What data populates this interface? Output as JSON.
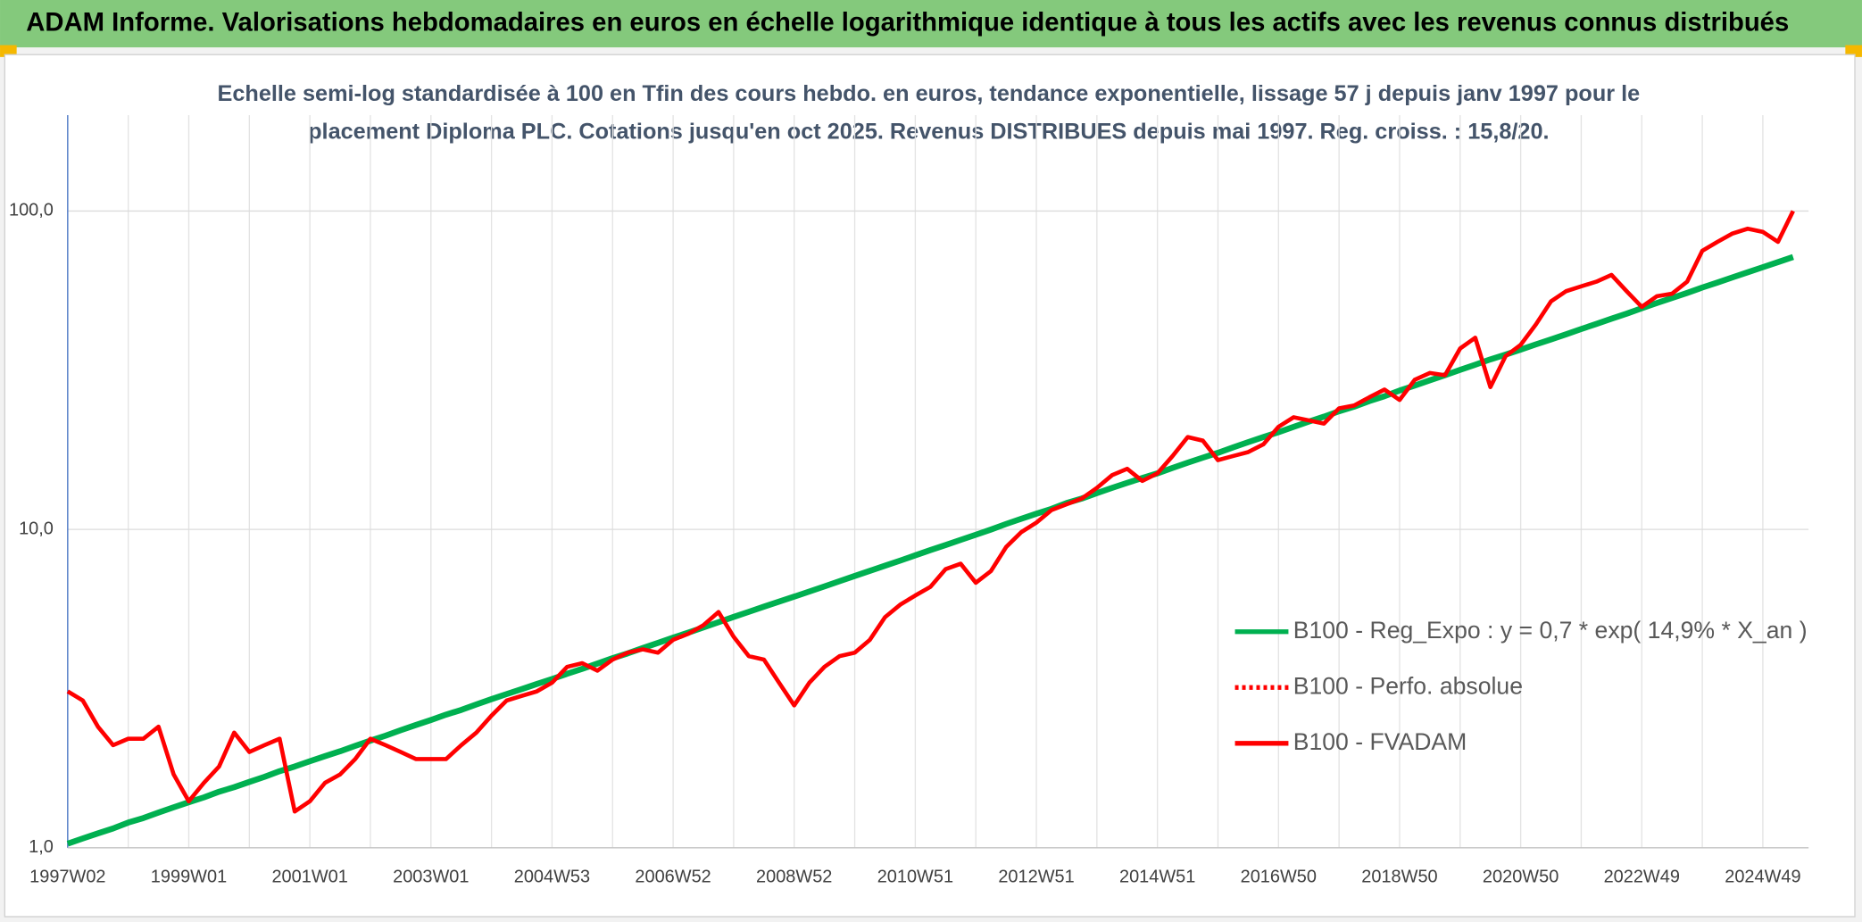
{
  "chart_data": {
    "type": "line",
    "title": "ADAM Informe. Valorisations hebdomadaires en euros en échelle logarithmique identique à tous les actifs avec les revenus connus distribués",
    "subtitle": [
      "Echelle semi-log standardisée à 100 en Tfin des cours hebdo. en euros, tendance exponentielle, lissage 57 j depuis janv 1997 pour le",
      "placement Diploma PLC. Cotations jusqu'en oct 2025. Revenus DISTRIBUES depuis mai 1997. Reg. croiss. : 15,8/20."
    ],
    "categories": [
      "1997W02",
      null,
      null,
      null,
      null,
      null,
      null,
      null,
      "1999W01",
      null,
      null,
      null,
      null,
      null,
      null,
      null,
      "2001W01",
      null,
      null,
      null,
      null,
      null,
      null,
      null,
      "2003W01",
      null,
      null,
      null,
      null,
      null,
      null,
      null,
      "2004W53",
      null,
      null,
      null,
      null,
      null,
      null,
      null,
      "2006W52",
      null,
      null,
      null,
      null,
      null,
      null,
      null,
      "2008W52",
      null,
      null,
      null,
      null,
      null,
      null,
      null,
      "2010W51",
      null,
      null,
      null,
      null,
      null,
      null,
      null,
      "2012W51",
      null,
      null,
      null,
      null,
      null,
      null,
      null,
      "2014W51",
      null,
      null,
      null,
      null,
      null,
      null,
      null,
      "2016W50",
      null,
      null,
      null,
      null,
      null,
      null,
      null,
      "2018W50",
      null,
      null,
      null,
      null,
      null,
      null,
      null,
      "2020W50",
      null,
      null,
      null,
      null,
      null,
      null,
      null,
      "2022W49",
      null,
      null,
      null,
      null,
      null,
      null,
      null,
      "2024W49",
      null,
      null
    ],
    "log_scale": true,
    "ylim": [
      1,
      200
    ],
    "yticks": [
      {
        "value": 1,
        "label": "1,0"
      },
      {
        "value": 10,
        "label": "10,0"
      },
      {
        "value": 100,
        "label": "100,0"
      }
    ],
    "grid": true,
    "legend": "right",
    "series": [
      {
        "name": "B100 - Reg_Expo : y = 0,7 * exp( 14,9% *  X_an )",
        "color": "#00b050",
        "style": "solid",
        "values": [
          1.03,
          1.07,
          1.11,
          1.15,
          1.2,
          1.24,
          1.29,
          1.34,
          1.39,
          1.44,
          1.5,
          1.55,
          1.61,
          1.67,
          1.74,
          1.8,
          1.87,
          1.94,
          2.01,
          2.09,
          2.17,
          2.25,
          2.34,
          2.43,
          2.52,
          2.62,
          2.71,
          2.82,
          2.93,
          3.04,
          3.15,
          3.27,
          3.39,
          3.52,
          3.65,
          3.79,
          3.94,
          4.08,
          4.24,
          4.4,
          4.57,
          4.74,
          4.92,
          5.11,
          5.31,
          5.51,
          5.72,
          5.93,
          6.15,
          6.38,
          6.62,
          6.88,
          7.14,
          7.41,
          7.69,
          7.98,
          8.29,
          8.61,
          8.93,
          9.27,
          9.62,
          9.99,
          10.4,
          10.8,
          11.2,
          11.6,
          12.1,
          12.5,
          13.0,
          13.5,
          14.0,
          14.5,
          15.0,
          15.6,
          16.2,
          16.8,
          17.4,
          18.1,
          18.8,
          19.5,
          20.2,
          21.0,
          21.8,
          22.6,
          23.5,
          24.3,
          25.3,
          26.2,
          27.3,
          28.3,
          29.4,
          30.5,
          31.7,
          32.9,
          34.2,
          35.4,
          36.7,
          38.1,
          39.5,
          41.0,
          42.6,
          44.2,
          45.9,
          47.6,
          49.5,
          51.4,
          53.3,
          55.3,
          57.5,
          59.6,
          61.9,
          64.2,
          66.6,
          69.1,
          71.7
        ]
      },
      {
        "name": "B100 - Perfo. absolue",
        "color": "#ff0000",
        "style": "dotted"
      },
      {
        "name": "B100 - FVADAM",
        "color": "#ff0000",
        "style": "solid",
        "values": [
          3.1,
          2.9,
          2.4,
          2.1,
          2.2,
          2.2,
          2.4,
          1.7,
          1.4,
          1.6,
          1.8,
          2.3,
          2.0,
          2.1,
          2.2,
          1.3,
          1.4,
          1.6,
          1.7,
          1.9,
          2.2,
          2.1,
          2.0,
          1.9,
          1.9,
          1.9,
          2.1,
          2.3,
          2.6,
          2.9,
          3.0,
          3.1,
          3.3,
          3.7,
          3.8,
          3.6,
          3.9,
          4.1,
          4.2,
          4.1,
          4.5,
          4.7,
          5.0,
          5.5,
          4.6,
          4.0,
          3.9,
          3.3,
          2.8,
          3.3,
          3.7,
          4.0,
          4.1,
          4.5,
          5.3,
          5.8,
          6.2,
          6.6,
          7.5,
          7.8,
          6.8,
          7.4,
          8.8,
          9.8,
          10.5,
          11.5,
          12.0,
          12.5,
          13.5,
          14.8,
          15.5,
          14.2,
          15.0,
          17.0,
          19.5,
          19.0,
          16.5,
          17.0,
          17.5,
          18.5,
          21.0,
          22.5,
          22.0,
          21.5,
          24.0,
          24.5,
          26.0,
          27.5,
          25.5,
          29.5,
          31.0,
          30.5,
          37.0,
          40.0,
          28.0,
          35.0,
          38.0,
          44.0,
          52.0,
          56.0,
          58.0,
          60.0,
          63.0,
          56.0,
          50.0,
          54.0,
          55.0,
          60.0,
          75.0,
          80.0,
          85.0,
          88.0,
          86.0,
          80.0,
          100.0
        ]
      }
    ]
  }
}
